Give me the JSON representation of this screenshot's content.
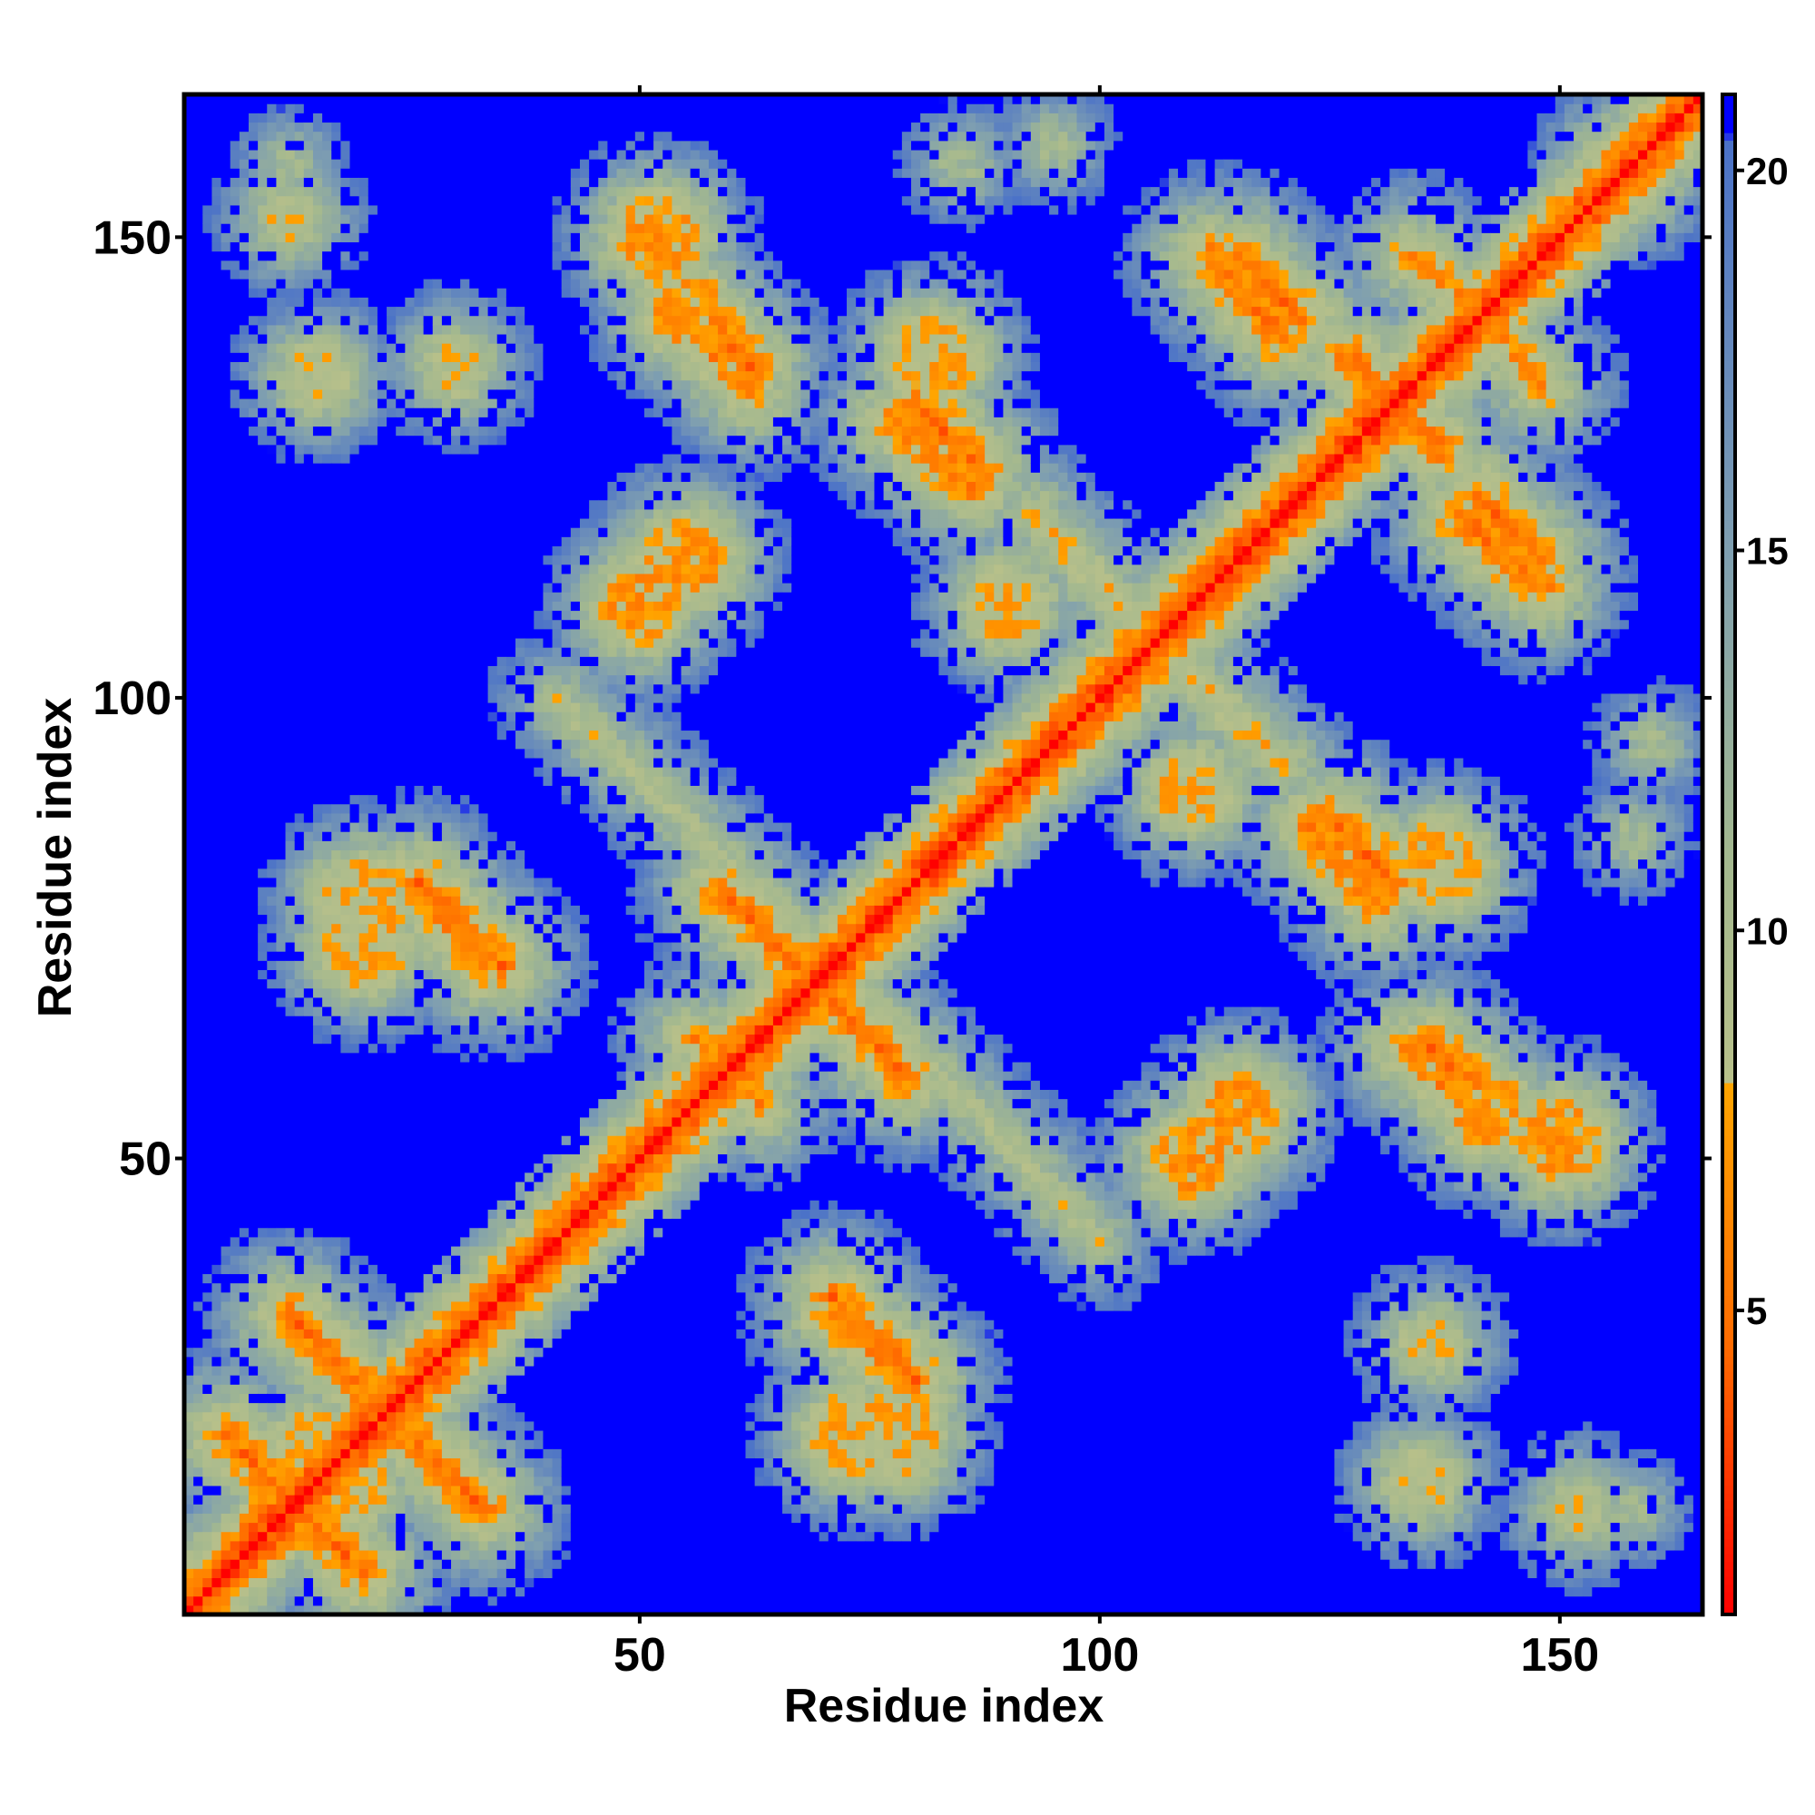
{
  "chart_data": {
    "type": "heatmap",
    "title": "",
    "xlabel": "Residue index",
    "ylabel": "Residue index",
    "xlim": [
      1,
      165
    ],
    "ylim": [
      1,
      165
    ],
    "x_ticks": [
      50,
      100,
      150
    ],
    "y_ticks": [
      50,
      100,
      150
    ],
    "colorbar": {
      "range": [
        1,
        21
      ],
      "ticks": [
        5,
        10,
        15,
        20
      ],
      "stops": [
        {
          "value": 1,
          "color": "#ff0000"
        },
        {
          "value": 4.5,
          "color": "#ff6a00"
        },
        {
          "value": 8,
          "color": "#ffa500"
        },
        {
          "value": 8.01,
          "color": "#b8c08a"
        },
        {
          "value": 11,
          "color": "#a3b88f"
        },
        {
          "value": 15,
          "color": "#7f9fb0"
        },
        {
          "value": 20.4,
          "color": "#4b72c8"
        },
        {
          "value": 20.5,
          "color": "#0000ff"
        },
        {
          "value": 21,
          "color": "#0000ff"
        }
      ]
    },
    "value_meaning": "pairwise residue distance",
    "cap_value": 21,
    "diagonal_value": 1,
    "contact_segments": [
      {
        "from": [
          5,
          20
        ],
        "to": [
          20,
          5
        ],
        "min": 5
      },
      {
        "from": [
          12,
          33
        ],
        "to": [
          32,
          13
        ],
        "min": 5
      },
      {
        "from": [
          28,
          78
        ],
        "to": [
          35,
          71
        ],
        "min": 5
      },
      {
        "from": [
          60,
          78
        ],
        "to": [
          79,
          59
        ],
        "min": 5
      },
      {
        "from": [
          41,
          100
        ],
        "to": [
          62,
          80
        ],
        "min": 9
      },
      {
        "from": [
          71,
          33
        ],
        "to": [
          80,
          26
        ],
        "min": 5
      },
      {
        "from": [
          57,
          62
        ],
        "to": [
          63,
          56
        ],
        "min": 6
      },
      {
        "from": [
          58,
          141
        ],
        "to": [
          62,
          136
        ],
        "min": 5
      },
      {
        "from": [
          80,
          132
        ],
        "to": [
          87,
          125
        ],
        "min": 5
      },
      {
        "from": [
          93,
          120
        ],
        "to": [
          116,
          96
        ],
        "min": 8
      },
      {
        "from": [
          115,
          148
        ],
        "to": [
          122,
          141
        ],
        "min": 5
      },
      {
        "from": [
          128,
          136
        ],
        "to": [
          137,
          127
        ],
        "min": 5
      },
      {
        "from": [
          139,
          120
        ],
        "to": [
          148,
          112
        ],
        "min": 5
      },
      {
        "from": [
          134,
          148
        ],
        "to": [
          140,
          143
        ],
        "min": 6
      },
      {
        "from": [
          123,
          86
        ],
        "to": [
          130,
          78
        ],
        "min": 5
      },
      {
        "from": [
          133,
          62
        ],
        "to": [
          137,
          58
        ],
        "min": 6
      }
    ],
    "contact_patches": [
      {
        "center": [
          12,
          152
        ],
        "radius": 6,
        "min": 9
      },
      {
        "center": [
          50,
          110
        ],
        "radius": 9,
        "min": 7
      },
      {
        "center": [
          52,
          150
        ],
        "radius": 10,
        "min": 7
      },
      {
        "center": [
          90,
          110
        ],
        "radius": 9,
        "min": 8
      },
      {
        "center": [
          115,
          55
        ],
        "radius": 10,
        "min": 7
      },
      {
        "center": [
          142,
          55
        ],
        "radius": 9,
        "min": 7
      },
      {
        "center": [
          136,
          30
        ],
        "radius": 7,
        "min": 9
      },
      {
        "center": [
          135,
          15
        ],
        "radius": 8,
        "min": 9
      },
      {
        "center": [
          158,
          155
        ],
        "radius": 5,
        "min": 9
      },
      {
        "center": [
          158,
          85
        ],
        "radius": 4,
        "min": 11
      },
      {
        "center": [
          158,
          12
        ],
        "radius": 3,
        "min": 11
      },
      {
        "center": [
          95,
          160
        ],
        "radius": 4,
        "min": 11
      },
      {
        "center": [
          20,
          78
        ],
        "radius": 11,
        "min": 8
      },
      {
        "center": [
          15,
          18
        ],
        "radius": 11,
        "min": 8
      },
      {
        "center": [
          73,
          20
        ],
        "radius": 11,
        "min": 8
      },
      {
        "center": [
          137,
          82
        ],
        "radius": 11,
        "min": 8
      }
    ]
  }
}
